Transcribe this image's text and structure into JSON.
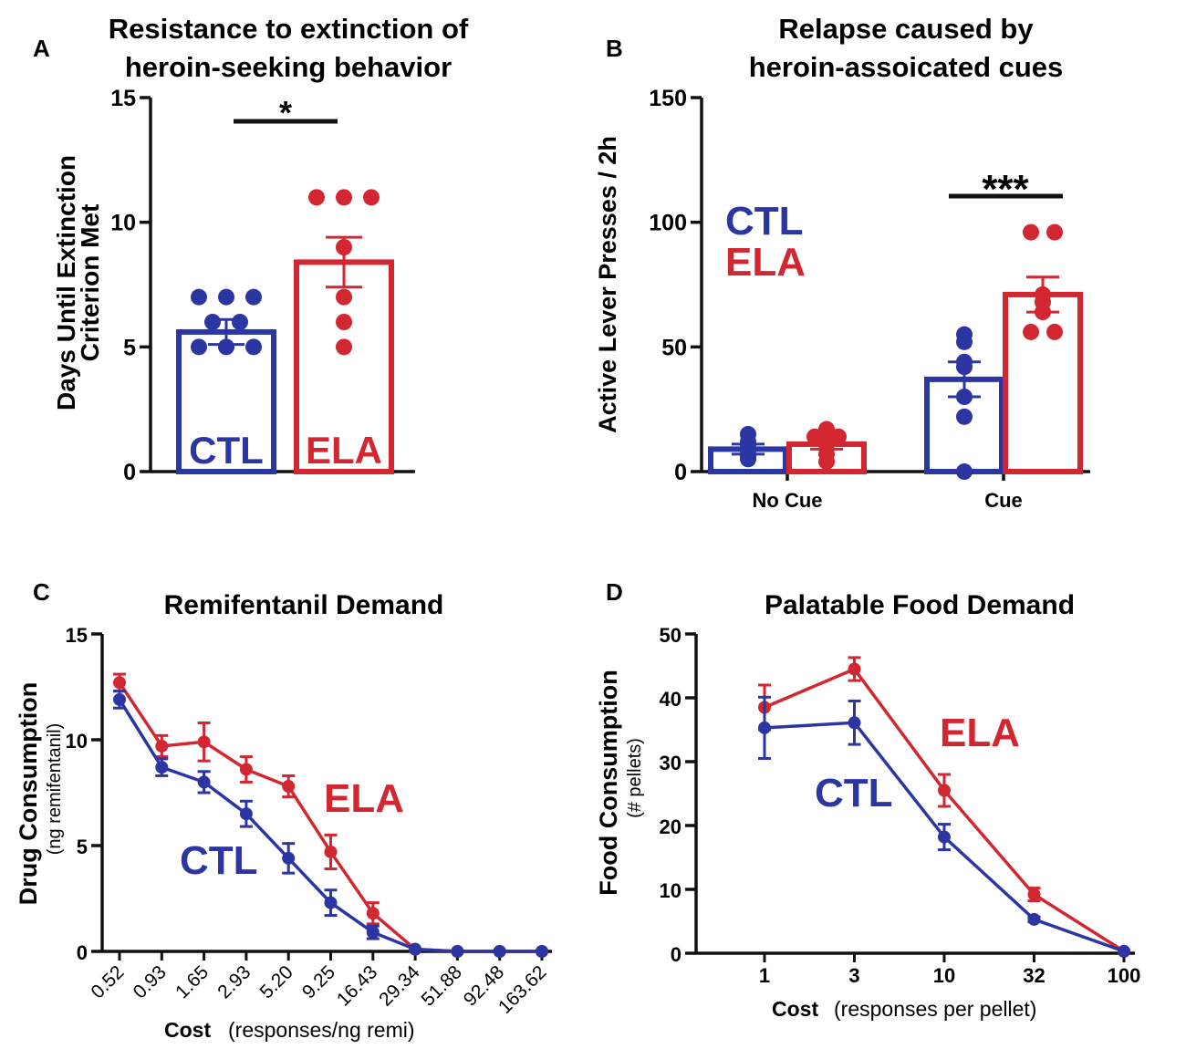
{
  "colors": {
    "ctl": "#2b36a3",
    "ela": "#d22630",
    "axis": "#111111"
  },
  "chart_data": [
    {
      "panel": "A",
      "type": "bar",
      "title_lines": [
        "Resistance to extinction of",
        "heroin-seeking behavior"
      ],
      "ylabel_lines": [
        "Days Until Extinction",
        "Criterion Met"
      ],
      "ylim": [
        0,
        15
      ],
      "yticks": [
        "0",
        "5",
        "10",
        "15"
      ],
      "ytick_values": [
        0,
        5,
        10,
        15
      ],
      "significance": "*",
      "bar_labels": [
        "CTL",
        "ELA"
      ],
      "series": [
        {
          "name": "CTL",
          "mean": 5.6,
          "sem": 0.5,
          "points": [
            7,
            7,
            7,
            6,
            6,
            5,
            5,
            5
          ]
        },
        {
          "name": "ELA",
          "mean": 8.4,
          "sem": 1.0,
          "points": [
            11,
            11,
            11,
            9,
            7,
            6,
            5
          ]
        }
      ]
    },
    {
      "panel": "B",
      "type": "bar",
      "title_lines": [
        "Relapse caused by",
        "heroin-assoicated cues"
      ],
      "ylabel": "Active Lever Presses / 2h",
      "ylim": [
        0,
        150
      ],
      "yticks": [
        "0",
        "50",
        "100",
        "150"
      ],
      "ytick_values": [
        0,
        50,
        100,
        150
      ],
      "categories": [
        "No Cue",
        "Cue"
      ],
      "legend": [
        "CTL",
        "ELA"
      ],
      "significance": "***",
      "series": [
        {
          "name": "CTL",
          "means": [
            9,
            37
          ],
          "sems": [
            2,
            7
          ],
          "points": [
            [
              10,
              15,
              12,
              8,
              6,
              9,
              5
            ],
            [
              55,
              52,
              44,
              42,
              30,
              22,
              0
            ]
          ]
        },
        {
          "name": "ELA",
          "means": [
            11,
            71
          ],
          "sems": [
            2,
            7
          ],
          "points": [
            [
              17,
              15,
              14,
              14,
              11,
              7,
              4
            ],
            [
              96,
              96,
              71,
              68,
              64,
              56,
              56
            ]
          ]
        }
      ]
    },
    {
      "panel": "C",
      "type": "line",
      "title": "Remifentanil Demand",
      "ylabel_main": "Drug Consumption",
      "ylabel_sub": "(ng remifentanil)",
      "xlabel_bold": "Cost",
      "xlabel_rest": "(responses/ng remi)",
      "categories": [
        "0.52",
        "0.93",
        "1.65",
        "2.93",
        "5.20",
        "9.25",
        "16.43",
        "29.34",
        "51.88",
        "92.48",
        "163.62"
      ],
      "ylim": [
        0,
        15
      ],
      "yticks": [
        "0",
        "5",
        "10",
        "15"
      ],
      "ytick_values": [
        0,
        5,
        10,
        15
      ],
      "series": [
        {
          "name": "ELA",
          "values": [
            12.7,
            9.7,
            9.9,
            8.6,
            7.8,
            4.7,
            1.8,
            0.1,
            0,
            0,
            0
          ],
          "errors": [
            0.4,
            0.5,
            0.9,
            0.6,
            0.5,
            0.8,
            0.5,
            0,
            0,
            0,
            0
          ]
        },
        {
          "name": "CTL",
          "values": [
            11.9,
            8.7,
            8.0,
            6.5,
            4.4,
            2.3,
            0.9,
            0.1,
            0,
            0,
            0
          ],
          "errors": [
            0.4,
            0.4,
            0.5,
            0.6,
            0.7,
            0.6,
            0.3,
            0,
            0,
            0,
            0
          ]
        }
      ]
    },
    {
      "panel": "D",
      "type": "line",
      "title": "Palatable Food Demand",
      "ylabel_main": "Food Consumption",
      "ylabel_sub": "(# pellets)",
      "xlabel_bold": "Cost",
      "xlabel_rest": "(responses per pellet)",
      "categories": [
        "1",
        "3",
        "10",
        "32",
        "100"
      ],
      "ylim": [
        0,
        50
      ],
      "yticks": [
        "0",
        "10",
        "20",
        "30",
        "40",
        "50"
      ],
      "ytick_values": [
        0,
        10,
        20,
        30,
        40,
        50
      ],
      "series": [
        {
          "name": "ELA",
          "values": [
            38.5,
            44.5,
            25.5,
            9.2,
            0.3
          ],
          "errors": [
            3.5,
            1.8,
            2.5,
            1.0,
            0
          ]
        },
        {
          "name": "CTL",
          "values": [
            35.3,
            36.1,
            18.2,
            5.3,
            0.3
          ],
          "errors": [
            4.8,
            3.4,
            2.0,
            0.4,
            0
          ]
        }
      ]
    }
  ],
  "panel_letters": [
    "A",
    "B",
    "C",
    "D"
  ],
  "inline_labels": {
    "ctl": "CTL",
    "ela": "ELA"
  }
}
